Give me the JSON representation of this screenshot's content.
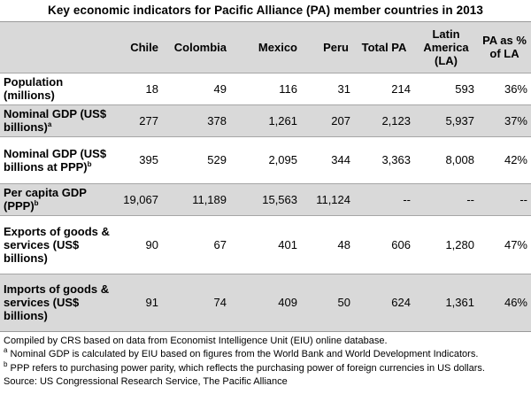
{
  "title": "Key economic indicators for Pacific Alliance (PA) member countries in 2013",
  "columns": [
    "Chile",
    "Colombia",
    "Mexico",
    "Peru",
    "Total PA",
    "Latin America (LA)",
    "PA as % of LA"
  ],
  "rows": [
    {
      "label": "Population (millions)",
      "sup": "",
      "values": [
        "18",
        "49",
        "116",
        "31",
        "214",
        "593",
        "36%"
      ]
    },
    {
      "label": "Nominal GDP (US$ billions)",
      "sup": "a",
      "values": [
        "277",
        "378",
        "1,261",
        "207",
        "2,123",
        "5,937",
        "37%"
      ]
    },
    {
      "label": "Nominal GDP (US$ billions at PPP)",
      "sup": "b",
      "values": [
        "395",
        "529",
        "2,095",
        "344",
        "3,363",
        "8,008",
        "42%"
      ]
    },
    {
      "label": "Per capita GDP (PPP)",
      "sup": "b",
      "values": [
        "19,067",
        "11,189",
        "15,563",
        "11,124",
        "--",
        "--",
        "--"
      ]
    },
    {
      "label": "Exports of goods & services (US$ billions)",
      "sup": "",
      "values": [
        "90",
        "67",
        "401",
        "48",
        "606",
        "1,280",
        "47%"
      ]
    },
    {
      "label": "Imports of goods & services (US$ billions)",
      "sup": "",
      "values": [
        "91",
        "74",
        "409",
        "50",
        "624",
        "1,361",
        "46%"
      ]
    }
  ],
  "notes": {
    "compiled": "Compiled by CRS based on data from Economist Intelligence Unit (EIU) online database.",
    "note_a_mark": "a",
    "note_a": " Nominal GDP is calculated by EIU based on figures from the World Bank and World Development Indicators.",
    "note_b_mark": "b",
    "note_b": " PPP refers to purchasing power parity, which reflects the purchasing power of foreign currencies in US dollars.",
    "source": "Source: US Congressional Research Service, The Pacific Alliance"
  }
}
